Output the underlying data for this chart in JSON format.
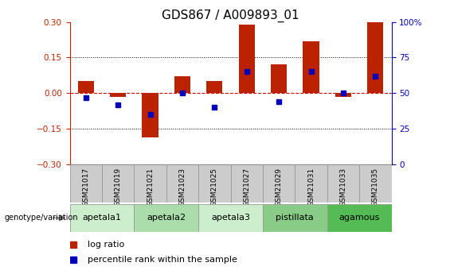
{
  "title": "GDS867 / A009893_01",
  "samples": [
    "GSM21017",
    "GSM21019",
    "GSM21021",
    "GSM21023",
    "GSM21025",
    "GSM21027",
    "GSM21029",
    "GSM21031",
    "GSM21033",
    "GSM21035"
  ],
  "log_ratio": [
    0.05,
    -0.015,
    -0.185,
    0.07,
    0.05,
    0.29,
    0.12,
    0.22,
    -0.015,
    0.3
  ],
  "percentile_rank": [
    47,
    42,
    35,
    50,
    40,
    65,
    44,
    65,
    50,
    62
  ],
  "ylim": [
    -0.3,
    0.3
  ],
  "yticks_left": [
    -0.3,
    -0.15,
    0,
    0.15,
    0.3
  ],
  "yticks_right": [
    0,
    25,
    50,
    75,
    100
  ],
  "dotted_lines": [
    -0.15,
    0.15
  ],
  "bar_color": "#bb2200",
  "percentile_color": "#0000bb",
  "hline_color": "#cc0000",
  "groups": [
    {
      "label": "apetala1",
      "start": 0,
      "end": 2,
      "color": "#cceecc"
    },
    {
      "label": "apetala2",
      "start": 2,
      "end": 4,
      "color": "#aaddaa"
    },
    {
      "label": "apetala3",
      "start": 4,
      "end": 6,
      "color": "#cceecc"
    },
    {
      "label": "pistillata",
      "start": 6,
      "end": 8,
      "color": "#88cc88"
    },
    {
      "label": "agamous",
      "start": 8,
      "end": 10,
      "color": "#55bb55"
    }
  ],
  "genotype_label": "genotype/variation",
  "legend_items": [
    "log ratio",
    "percentile rank within the sample"
  ],
  "background_color": "#ffffff",
  "title_fontsize": 11,
  "tick_fontsize": 7.5,
  "bar_width": 0.5,
  "sample_box_color": "#cccccc",
  "sample_box_edge": "#999999"
}
